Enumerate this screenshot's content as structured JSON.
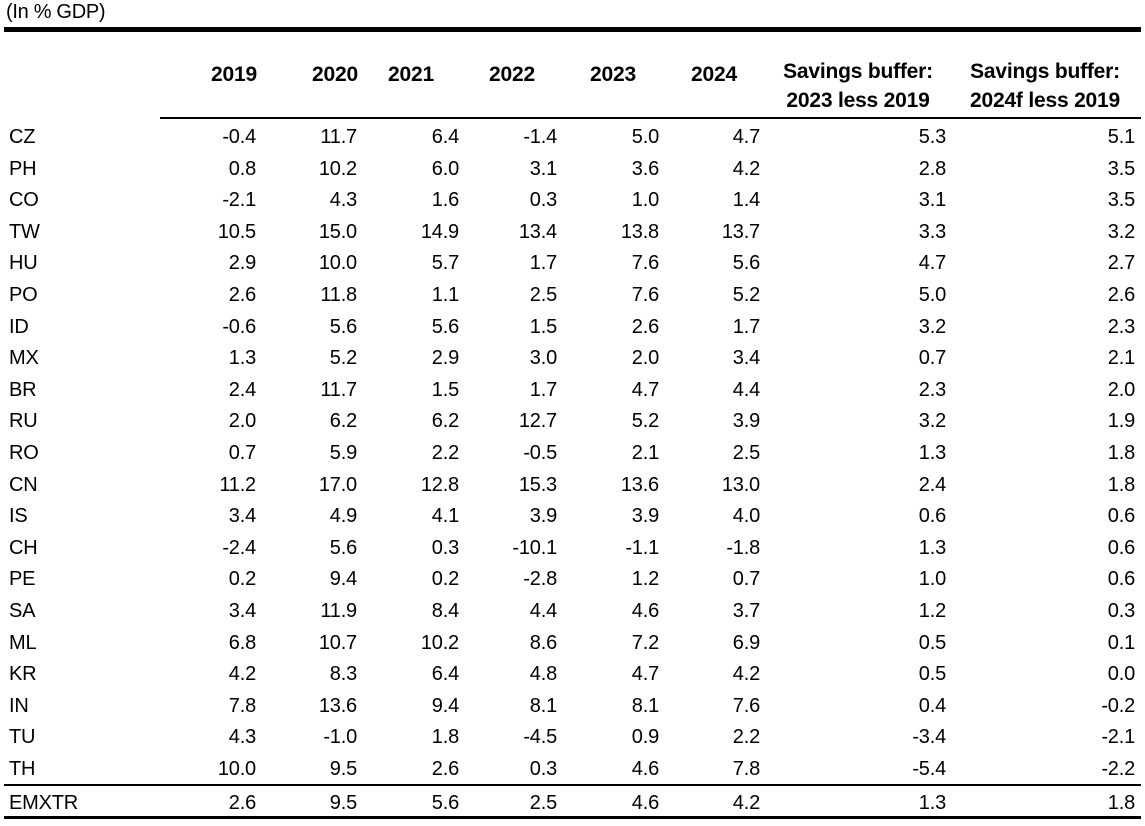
{
  "table": {
    "unit_note": "(In % GDP)",
    "columns": [
      {
        "label": [
          "2019"
        ]
      },
      {
        "label": [
          "2020"
        ]
      },
      {
        "label": [
          "2021"
        ]
      },
      {
        "label": [
          "2022"
        ]
      },
      {
        "label": [
          "2023"
        ]
      },
      {
        "label": [
          "2024"
        ]
      },
      {
        "label": [
          "Savings buffer:",
          "2023 less 2019"
        ]
      },
      {
        "label": [
          "Savings buffer:",
          "2024f less 2019"
        ]
      }
    ],
    "rows": [
      {
        "label": "CZ",
        "values": [
          "-0.4",
          "11.7",
          "6.4",
          "-1.4",
          "5.0",
          "4.7",
          "5.3",
          "5.1"
        ]
      },
      {
        "label": "PH",
        "values": [
          "0.8",
          "10.2",
          "6.0",
          "3.1",
          "3.6",
          "4.2",
          "2.8",
          "3.5"
        ]
      },
      {
        "label": "CO",
        "values": [
          "-2.1",
          "4.3",
          "1.6",
          "0.3",
          "1.0",
          "1.4",
          "3.1",
          "3.5"
        ]
      },
      {
        "label": "TW",
        "values": [
          "10.5",
          "15.0",
          "14.9",
          "13.4",
          "13.8",
          "13.7",
          "3.3",
          "3.2"
        ]
      },
      {
        "label": "HU",
        "values": [
          "2.9",
          "10.0",
          "5.7",
          "1.7",
          "7.6",
          "5.6",
          "4.7",
          "2.7"
        ]
      },
      {
        "label": "PO",
        "values": [
          "2.6",
          "11.8",
          "1.1",
          "2.5",
          "7.6",
          "5.2",
          "5.0",
          "2.6"
        ]
      },
      {
        "label": "ID",
        "values": [
          "-0.6",
          "5.6",
          "5.6",
          "1.5",
          "2.6",
          "1.7",
          "3.2",
          "2.3"
        ]
      },
      {
        "label": "MX",
        "values": [
          "1.3",
          "5.2",
          "2.9",
          "3.0",
          "2.0",
          "3.4",
          "0.7",
          "2.1"
        ]
      },
      {
        "label": "BR",
        "values": [
          "2.4",
          "11.7",
          "1.5",
          "1.7",
          "4.7",
          "4.4",
          "2.3",
          "2.0"
        ]
      },
      {
        "label": "RU",
        "values": [
          "2.0",
          "6.2",
          "6.2",
          "12.7",
          "5.2",
          "3.9",
          "3.2",
          "1.9"
        ]
      },
      {
        "label": "RO",
        "values": [
          "0.7",
          "5.9",
          "2.2",
          "-0.5",
          "2.1",
          "2.5",
          "1.3",
          "1.8"
        ]
      },
      {
        "label": "CN",
        "values": [
          "11.2",
          "17.0",
          "12.8",
          "15.3",
          "13.6",
          "13.0",
          "2.4",
          "1.8"
        ]
      },
      {
        "label": "IS",
        "values": [
          "3.4",
          "4.9",
          "4.1",
          "3.9",
          "3.9",
          "4.0",
          "0.6",
          "0.6"
        ]
      },
      {
        "label": "CH",
        "values": [
          "-2.4",
          "5.6",
          "0.3",
          "-10.1",
          "-1.1",
          "-1.8",
          "1.3",
          "0.6"
        ]
      },
      {
        "label": "PE",
        "values": [
          "0.2",
          "9.4",
          "0.2",
          "-2.8",
          "1.2",
          "0.7",
          "1.0",
          "0.6"
        ]
      },
      {
        "label": "SA",
        "values": [
          "3.4",
          "11.9",
          "8.4",
          "4.4",
          "4.6",
          "3.7",
          "1.2",
          "0.3"
        ]
      },
      {
        "label": "ML",
        "values": [
          "6.8",
          "10.7",
          "10.2",
          "8.6",
          "7.2",
          "6.9",
          "0.5",
          "0.1"
        ]
      },
      {
        "label": "KR",
        "values": [
          "4.2",
          "8.3",
          "6.4",
          "4.8",
          "4.7",
          "4.2",
          "0.5",
          "0.0"
        ]
      },
      {
        "label": "IN",
        "values": [
          "7.8",
          "13.6",
          "9.4",
          "8.1",
          "8.1",
          "7.6",
          "0.4",
          "-0.2"
        ]
      },
      {
        "label": "TU",
        "values": [
          "4.3",
          "-1.0",
          "1.8",
          "-4.5",
          "0.9",
          "2.2",
          "-3.4",
          "-2.1"
        ]
      },
      {
        "label": "TH",
        "values": [
          "10.0",
          "9.5",
          "2.6",
          "0.3",
          "4.6",
          "7.8",
          "-5.4",
          "-2.2"
        ]
      },
      {
        "label": "EMXTR",
        "values": [
          "2.6",
          "9.5",
          "5.6",
          "2.5",
          "4.6",
          "4.2",
          "1.3",
          "1.8"
        ]
      }
    ]
  }
}
